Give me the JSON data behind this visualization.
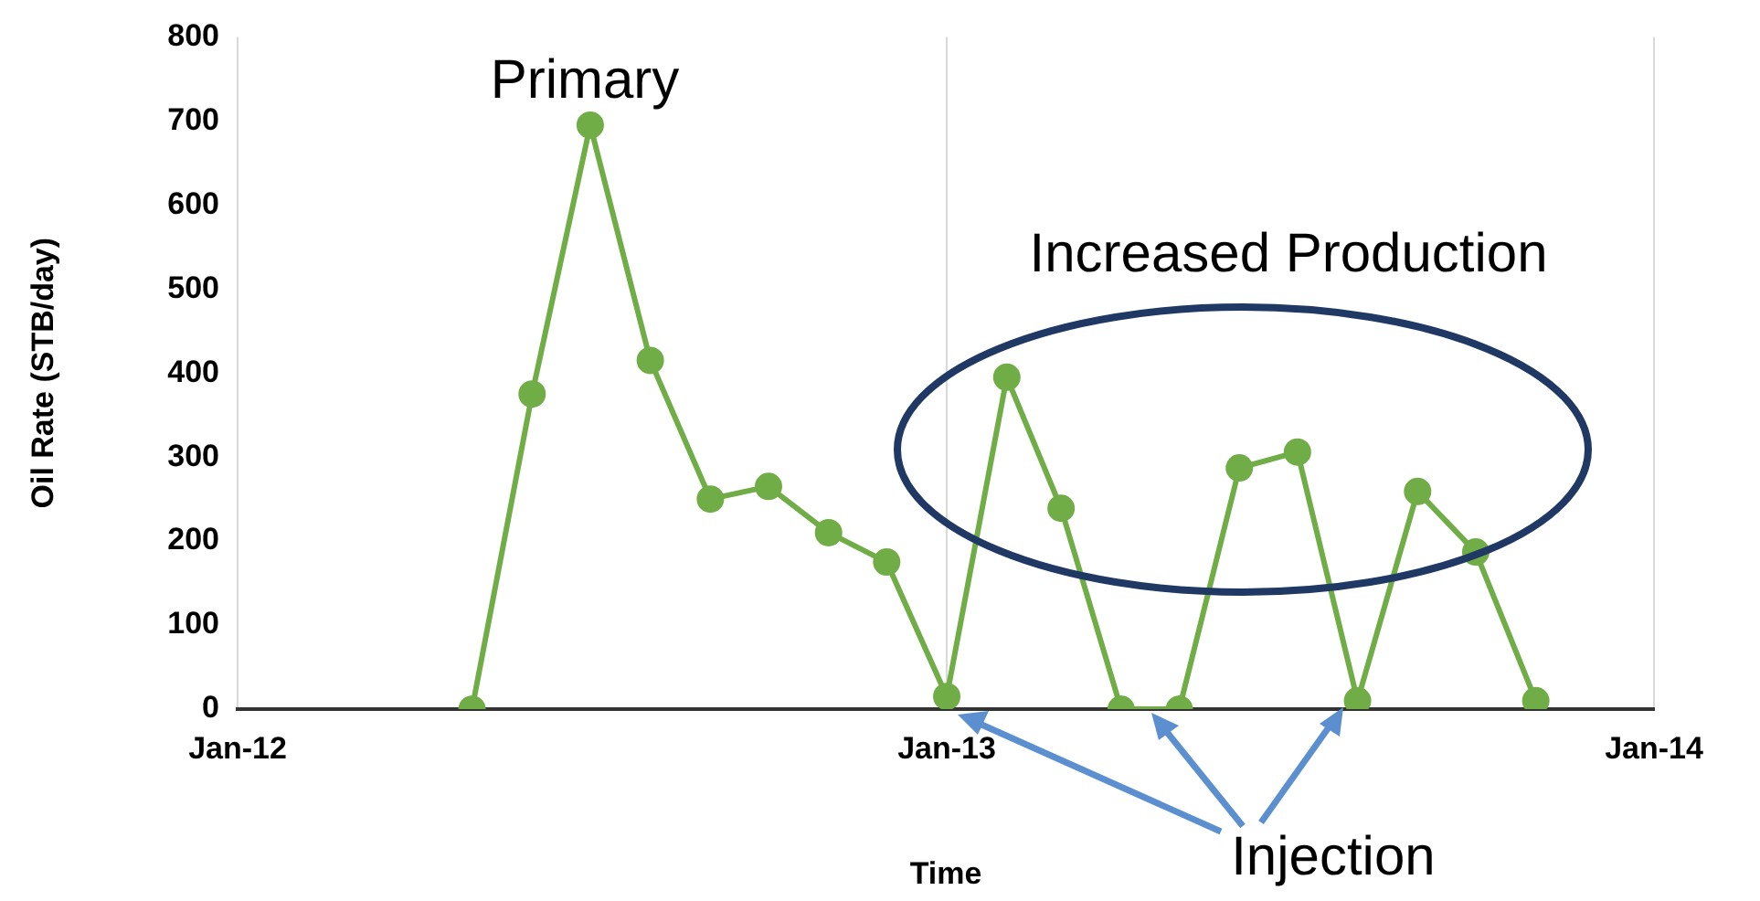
{
  "chart_data": {
    "type": "line",
    "xlabel": "Time",
    "ylabel": "Oil Rate (STB/day)",
    "x": [
      "2012-05-01",
      "2012-06-01",
      "2012-07-01",
      "2012-08-01",
      "2012-09-01",
      "2012-10-01",
      "2012-11-01",
      "2012-12-01",
      "2013-01-01",
      "2013-02-01",
      "2013-03-01",
      "2013-04-01",
      "2013-05-01",
      "2013-06-01",
      "2013-07-01",
      "2013-08-01",
      "2013-09-01",
      "2013-10-01",
      "2013-11-01"
    ],
    "series": [
      {
        "color": "#70ad47",
        "values": [
          0,
          375,
          695,
          415,
          250,
          265,
          210,
          175,
          15,
          395,
          239,
          0,
          0,
          287,
          306,
          10,
          259,
          187,
          10
        ]
      }
    ],
    "xlim": [
      "2012-01-01",
      "2014-01-01"
    ],
    "xticks": [
      {
        "value": "2012-01-01",
        "label": "Jan-12"
      },
      {
        "value": "2013-01-01",
        "label": "Jan-13"
      },
      {
        "value": "2014-01-01",
        "label": "Jan-14"
      }
    ],
    "ylim": [
      0,
      800
    ],
    "yticks": [
      0,
      100,
      200,
      300,
      400,
      500,
      600,
      700,
      800
    ],
    "grid": "x",
    "legend": false,
    "marker": "circle",
    "line_style": "solid",
    "annotations": [
      "Primary",
      "Increased Production",
      {
        "text": "Injection",
        "x": "2013-04-01",
        "y": 0
      }
    ]
  }
}
